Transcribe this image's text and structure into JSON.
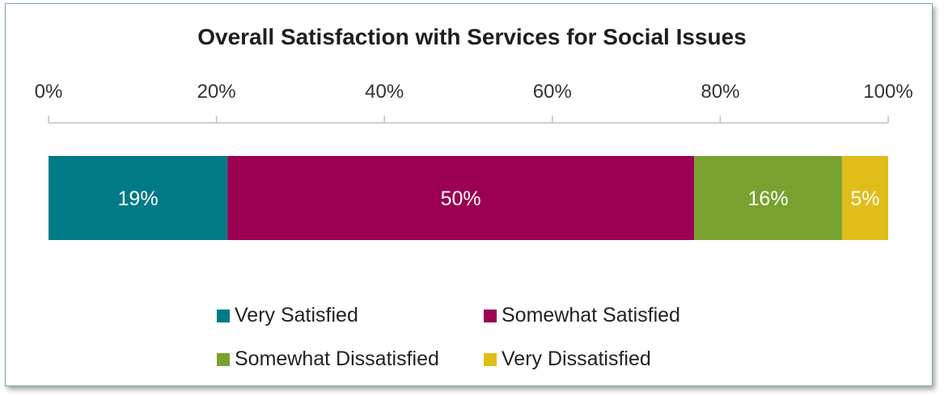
{
  "chart_data": {
    "type": "bar",
    "orientation": "horizontal-stacked",
    "title": "Overall Satisfaction with Services for Social Issues",
    "axis": {
      "min": 0,
      "max": 100,
      "ticks": [
        "0%",
        "20%",
        "40%",
        "60%",
        "80%",
        "100%"
      ],
      "position": "top"
    },
    "series": [
      {
        "name": "Very Satisfied",
        "value": 21.3,
        "label": "19%",
        "color": "#007a87"
      },
      {
        "name": "Somewhat Satisfied",
        "value": 55.6,
        "label": "50%",
        "color": "#9b0053"
      },
      {
        "name": "Somewhat Dissatisfied",
        "value": 17.6,
        "label": "16%",
        "color": "#78a22f"
      },
      {
        "name": "Very Dissatisfied",
        "value": 5.5,
        "label": "5%",
        "color": "#e1bd19"
      }
    ],
    "legend": {
      "position": "bottom",
      "items": [
        "Very Satisfied",
        "Somewhat Satisfied",
        "Somewhat Dissatisfied",
        "Very Dissatisfied"
      ]
    },
    "grid": false
  }
}
